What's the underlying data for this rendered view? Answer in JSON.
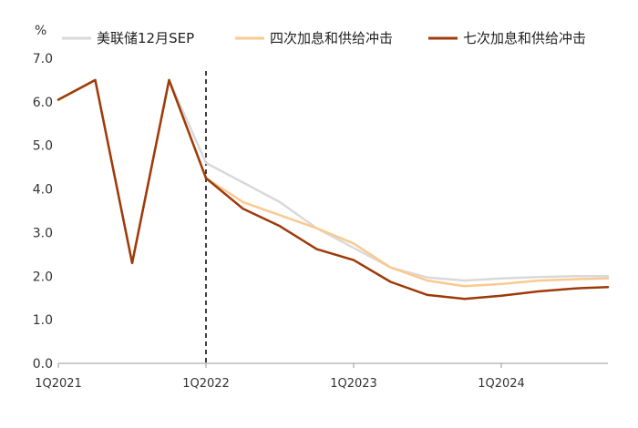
{
  "chart_data": {
    "type": "line",
    "ylabel": "%",
    "ylim": [
      0,
      7
    ],
    "yticks": [
      "0.0",
      "1.0",
      "2.0",
      "3.0",
      "4.0",
      "5.0",
      "6.0",
      "7.0"
    ],
    "x": [
      "1Q2021",
      "2Q2021",
      "3Q2021",
      "4Q2021",
      "1Q2022",
      "2Q2022",
      "3Q2022",
      "4Q2022",
      "1Q2023",
      "2Q2023",
      "3Q2023",
      "4Q2023",
      "1Q2024",
      "2Q2024",
      "3Q2024",
      "4Q2024"
    ],
    "xtick_labels": [
      "1Q2021",
      "1Q2022",
      "1Q2023",
      "1Q2024"
    ],
    "reference_line_at": "1Q2022",
    "grid": false,
    "legend_position": "top",
    "series": [
      {
        "name": "美联储12月SEP",
        "color": "#d9d9d9",
        "values": [
          6.05,
          6.5,
          2.3,
          6.5,
          4.6,
          4.15,
          3.7,
          3.1,
          2.65,
          2.2,
          1.97,
          1.9,
          1.95,
          1.98,
          2.0,
          2.0
        ]
      },
      {
        "name": "四次加息和供给冲击",
        "color": "#fac98f",
        "values": [
          6.05,
          6.5,
          2.3,
          6.5,
          4.25,
          3.7,
          3.4,
          3.1,
          2.75,
          2.2,
          1.9,
          1.77,
          1.82,
          1.9,
          1.93,
          1.95
        ]
      },
      {
        "name": "七次加息和供给冲击",
        "color": "#9e3a0a",
        "values": [
          6.05,
          6.5,
          2.3,
          6.5,
          4.25,
          3.55,
          3.15,
          2.62,
          2.37,
          1.87,
          1.57,
          1.48,
          1.55,
          1.65,
          1.72,
          1.75
        ]
      }
    ]
  }
}
